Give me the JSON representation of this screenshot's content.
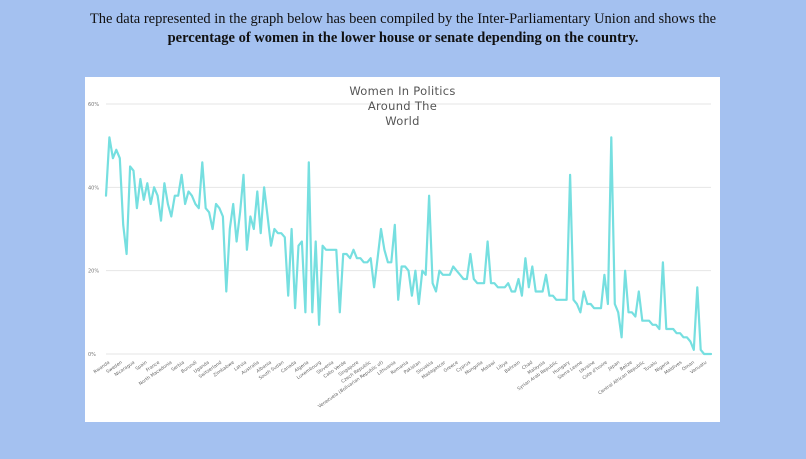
{
  "intro": {
    "line1": "The data represented in the graph below has been compiled by the Inter-Parliamentary Union and shows the",
    "line2": "percentage of women in the lower house or senate depending on the country."
  },
  "chart_data": {
    "type": "line",
    "title_lines": [
      "Women In Politics",
      "Around The",
      "World"
    ],
    "xlabel": "",
    "ylabel": "",
    "ylim": [
      0,
      60
    ],
    "yticks": [
      0,
      20,
      40,
      60
    ],
    "ytick_labels": [
      "0%",
      "20%",
      "40%",
      "60%"
    ],
    "grid": true,
    "legend": "none",
    "color": "#76dfe0",
    "x_tick_labels": [
      "Rwanda",
      "Sweden",
      "Nicaragua",
      "Spain",
      "France",
      "North Macedonia",
      "Serbia",
      "Burundi",
      "Uganda",
      "Switzerland",
      "Zimbabwe",
      "Latvia",
      "Australia",
      "Albania",
      "South Sudan",
      "Canada",
      "Algeria",
      "Luxembourg",
      "Slovenia",
      "Cabo Verde",
      "Singapore",
      "Czech Republic",
      "Venezuela (Bolivarian Republic of)",
      "Lithuania",
      "Romania",
      "Pakistan",
      "Slovakia",
      "Madagascar",
      "Greece",
      "Cyprus",
      "Mongolia",
      "Malawi",
      "Libya",
      "Bahrain",
      "Chad",
      "Malaysia",
      "Syrian Arab Republic",
      "Hungary",
      "Sierra Leone",
      "Ukraine",
      "Cote d'Ivoire",
      "Japan",
      "Belize",
      "Central African Republic",
      "Tuvalu",
      "Nigeria",
      "Maldives",
      "Oman",
      "Vanuatu"
    ],
    "values": [
      38,
      52,
      47,
      49,
      47,
      31,
      24,
      45,
      44,
      35,
      42,
      37,
      41,
      36,
      40,
      38,
      32,
      41,
      36,
      33,
      38,
      38,
      43,
      36,
      39,
      38,
      36,
      35,
      46,
      35,
      34,
      30,
      36,
      35,
      33,
      15,
      30,
      36,
      27,
      34,
      43,
      25,
      33,
      30,
      39,
      29,
      40,
      33,
      26,
      30,
      29,
      29,
      28,
      14,
      30,
      11,
      26,
      27,
      10,
      46,
      10,
      27,
      7,
      26,
      25,
      25,
      25,
      25,
      10,
      24,
      24,
      23,
      25,
      23,
      23,
      22,
      22,
      23,
      16,
      23,
      30,
      25,
      22,
      22,
      31,
      13,
      21,
      21,
      20,
      14,
      20,
      12,
      20,
      19,
      38,
      17,
      15,
      20,
      19,
      19,
      19,
      21,
      20,
      19,
      18,
      18,
      24,
      18,
      17,
      17,
      17,
      27,
      17,
      17,
      16,
      16,
      16,
      17,
      15,
      15,
      18,
      14,
      23,
      16,
      21,
      15,
      15,
      15,
      19,
      14,
      14,
      13,
      13,
      13,
      13,
      43,
      13,
      12,
      10,
      15,
      12,
      12,
      11,
      11,
      11,
      19,
      12,
      52,
      12,
      10,
      4,
      20,
      10,
      10,
      9,
      15,
      8,
      8,
      8,
      7,
      7,
      6,
      22,
      6,
      6,
      6,
      5,
      5,
      4,
      4,
      3,
      1,
      16,
      1,
      0,
      0,
      0
    ]
  }
}
